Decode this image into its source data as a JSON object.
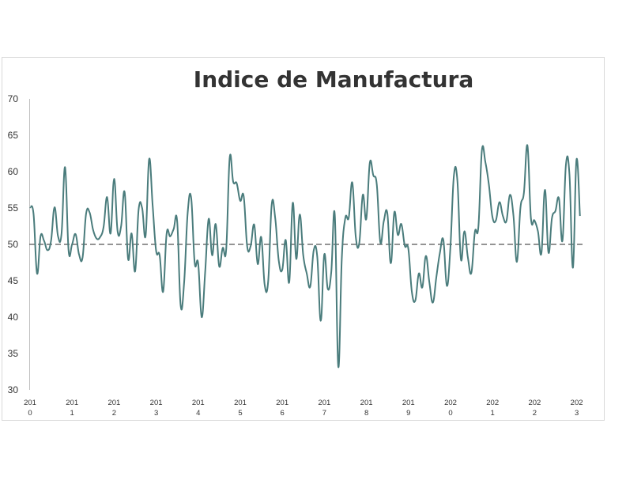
{
  "chart_data": {
    "type": "line",
    "title": "Indice de Manufactura",
    "xlabel": "",
    "ylabel": "",
    "ylim": [
      30,
      70
    ],
    "yticks": [
      "30",
      "35",
      "40",
      "45",
      "50",
      "55",
      "60",
      "65",
      "70"
    ],
    "xticks": [
      {
        "year": 2010,
        "line1": "201",
        "line2": "0"
      },
      {
        "year": 2011,
        "line1": "201",
        "line2": "1"
      },
      {
        "year": 2012,
        "line1": "201",
        "line2": "2"
      },
      {
        "year": 2013,
        "line1": "201",
        "line2": "3"
      },
      {
        "year": 2014,
        "line1": "201",
        "line2": "4"
      },
      {
        "year": 2015,
        "line1": "201",
        "line2": "5"
      },
      {
        "year": 2016,
        "line1": "201",
        "line2": "6"
      },
      {
        "year": 2017,
        "line1": "201",
        "line2": "7"
      },
      {
        "year": 2018,
        "line1": "201",
        "line2": "8"
      },
      {
        "year": 2019,
        "line1": "201",
        "line2": "9"
      },
      {
        "year": 2020,
        "line1": "202",
        "line2": "0"
      },
      {
        "year": 2021,
        "line1": "202",
        "line2": "1"
      },
      {
        "year": 2022,
        "line1": "202",
        "line2": "2"
      },
      {
        "year": 2023,
        "line1": "202",
        "line2": "3"
      }
    ],
    "reference_line": 50,
    "grid": false,
    "legend": "none",
    "colors": {
      "series": "#4a7c7c",
      "reference": "#555555",
      "axis": "#bfbfbf"
    },
    "series": [
      {
        "x_start": 2010.0,
        "x_step": 0.0833,
        "values": [
          55.1,
          54.2,
          46,
          51.1,
          50.5,
          49.2,
          50.5,
          55.1,
          51.1,
          51.5,
          60.6,
          49.2,
          50,
          51.4,
          48.6,
          48.2,
          54.2,
          54.4,
          52,
          50.8,
          51,
          52.4,
          56.5,
          51.5,
          59,
          51.8,
          52.5,
          57.2,
          48,
          51.5,
          46.3,
          54.8,
          55,
          51.2,
          61.7,
          55.4,
          49.1,
          48.5,
          43.5,
          51.5,
          51.1,
          52.1,
          53.2,
          41.6,
          44.8,
          54.3,
          56.4,
          47.5,
          47.4,
          40,
          46.2,
          53.5,
          48.5,
          52.8,
          47,
          49.5,
          49.3,
          61.9,
          58.6,
          58.4,
          56,
          56.6,
          49.7,
          49.8,
          52.7,
          47.3,
          51,
          44.4,
          45,
          55.5,
          53.6,
          47.8,
          46.5,
          50.6,
          44.8,
          55.7,
          48,
          54.1,
          48.5,
          46,
          44.2,
          49.2,
          48.3,
          39.5,
          48.6,
          43.9,
          46.2,
          54.1,
          33.2,
          48,
          53.6,
          53.7,
          58.5,
          51,
          50.2,
          56.8,
          53.5,
          61.2,
          59.5,
          58.2,
          50.3,
          53.2,
          54.3,
          47.4,
          54.4,
          51.3,
          52.8,
          49.8,
          49.4,
          43.5,
          42.3,
          46,
          44.1,
          48.4,
          44.8,
          42,
          45.5,
          48.8,
          50.6,
          44.3,
          49.5,
          59.4,
          58.8,
          48,
          51.8,
          48.2,
          46.1,
          51.7,
          52.4,
          62.9,
          61.3,
          58.2,
          53.8,
          53.3,
          55.8,
          53.9,
          53.2,
          56.8,
          54,
          47.6,
          55,
          57.1,
          63.6,
          53.6,
          53.3,
          51.8,
          48.8,
          57.5,
          48.9,
          53.6,
          54.6,
          56.3,
          50.5,
          61,
          59.6,
          46.8,
          61.6,
          53.9
        ]
      }
    ]
  }
}
